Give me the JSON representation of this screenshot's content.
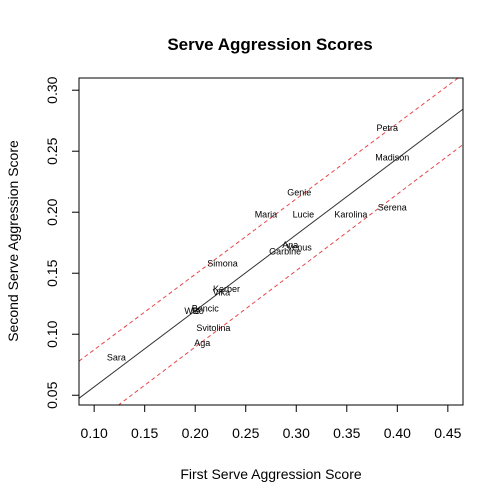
{
  "chart_data": {
    "type": "scatter",
    "title": "Serve Aggression Scores",
    "xlabel": "First Serve Aggression Score",
    "ylabel": "Second Serve Aggression Score",
    "xlim": [
      0.085,
      0.465
    ],
    "ylim": [
      0.042,
      0.31
    ],
    "xticks": [
      0.1,
      0.15,
      0.2,
      0.25,
      0.3,
      0.35,
      0.4,
      0.45
    ],
    "xtick_labels": [
      "0.10",
      "0.15",
      "0.20",
      "0.25",
      "0.30",
      "0.35",
      "0.40",
      "0.45"
    ],
    "yticks": [
      0.05,
      0.1,
      0.15,
      0.2,
      0.25,
      0.3
    ],
    "ytick_labels": [
      "0.05",
      "0.10",
      "0.15",
      "0.20",
      "0.25",
      "0.30"
    ],
    "points": [
      {
        "label": "Petra",
        "x": 0.39,
        "y": 0.269
      },
      {
        "label": "Madison",
        "x": 0.395,
        "y": 0.245
      },
      {
        "label": "Genie",
        "x": 0.303,
        "y": 0.216
      },
      {
        "label": "Serena",
        "x": 0.395,
        "y": 0.204
      },
      {
        "label": "Maria",
        "x": 0.27,
        "y": 0.198
      },
      {
        "label": "Lucie",
        "x": 0.307,
        "y": 0.198
      },
      {
        "label": "Karolina",
        "x": 0.354,
        "y": 0.198
      },
      {
        "label": "Ana",
        "x": 0.294,
        "y": 0.173
      },
      {
        "label": "Venus",
        "x": 0.303,
        "y": 0.171
      },
      {
        "label": "Garbine",
        "x": 0.289,
        "y": 0.168
      },
      {
        "label": "Simona",
        "x": 0.227,
        "y": 0.158
      },
      {
        "label": "Kerber",
        "x": 0.231,
        "y": 0.137
      },
      {
        "label": "Vika",
        "x": 0.226,
        "y": 0.134
      },
      {
        "label": "Bencic",
        "x": 0.21,
        "y": 0.121
      },
      {
        "label": "Wie",
        "x": 0.197,
        "y": 0.119
      },
      {
        "label": "Bo",
        "x": 0.203,
        "y": 0.119
      },
      {
        "label": "Svitolina",
        "x": 0.218,
        "y": 0.105
      },
      {
        "label": "Aga",
        "x": 0.207,
        "y": 0.093
      },
      {
        "label": "Sara",
        "x": 0.122,
        "y": 0.081
      }
    ],
    "lines": [
      {
        "style": "solid",
        "color": "#333333",
        "x": [
          0.085,
          0.465
        ],
        "y": [
          0.0475,
          0.2845
        ]
      },
      {
        "style": "dashed",
        "color": "#e8474b",
        "x": [
          0.085,
          0.465
        ],
        "y": [
          0.078,
          0.313
        ]
      },
      {
        "style": "dashed",
        "color": "#e8474b",
        "x": [
          0.085,
          0.465
        ],
        "y": [
          0.0175,
          0.2555
        ]
      }
    ],
    "grid": false,
    "legend": "none"
  }
}
